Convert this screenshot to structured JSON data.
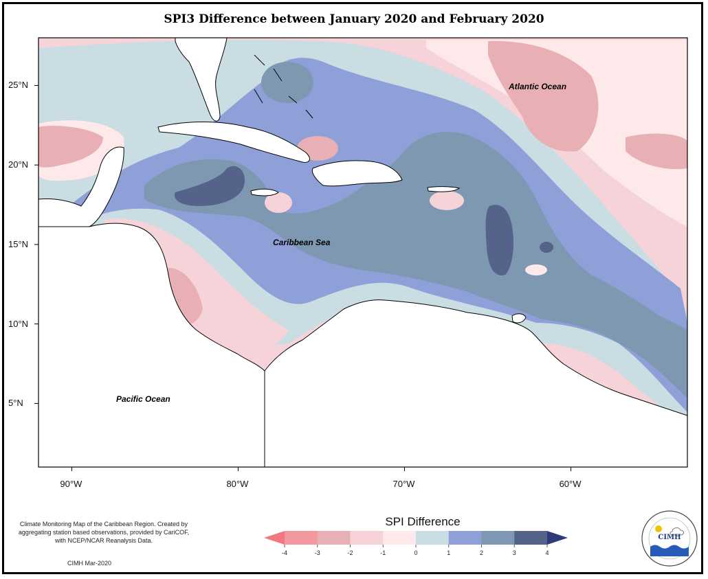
{
  "title": "SPI3 Difference between January 2020 and February 2020",
  "map": {
    "extent": {
      "lon_min": -92,
      "lon_max": -53,
      "lat_min": 1,
      "lat_max": 28
    },
    "lat_ticks": [
      {
        "value": 25,
        "label": "25°N"
      },
      {
        "value": 20,
        "label": "20°N"
      },
      {
        "value": 15,
        "label": "15°N"
      },
      {
        "value": 10,
        "label": "10°N"
      },
      {
        "value": 5,
        "label": "5°N"
      }
    ],
    "lon_ticks": [
      {
        "value": -90,
        "label": "90°W"
      },
      {
        "value": -80,
        "label": "80°W"
      },
      {
        "value": -70,
        "label": "70°W"
      },
      {
        "value": -60,
        "label": "60°W"
      }
    ],
    "labels": {
      "atlantic": "Atlantic Ocean",
      "caribbean": "Caribbean Sea",
      "pacific": "Pacific Ocean"
    }
  },
  "legend": {
    "title": "SPI Difference",
    "ticks": [
      "-4",
      "-3",
      "-2",
      "-1",
      "0",
      "1",
      "2",
      "3",
      "4"
    ],
    "colors": [
      "#f2999f",
      "#e8b0b5",
      "#f6d3d8",
      "#fde9ea",
      "#c9dde3",
      "#8f9fd8",
      "#7d98b0",
      "#55628a"
    ],
    "under_color": "#f07880",
    "over_color": "#2f3a7a"
  },
  "note": "Climate Monitoring Map of the Caribbean Region. Created by aggregating station based observations, provided by CariCOF, with NCEP/NCAR Reanalysis Data.",
  "credit": "CIMH Mar-2020",
  "logo": {
    "text": "CIMH"
  }
}
